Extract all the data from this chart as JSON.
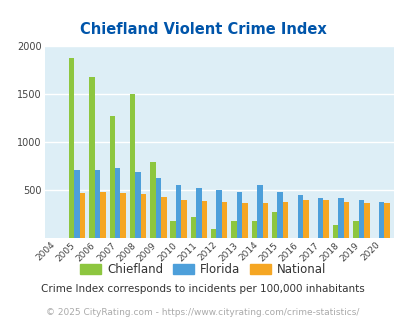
{
  "title": "Chiefland Violent Crime Index",
  "years": [
    2004,
    2005,
    2006,
    2007,
    2008,
    2009,
    2010,
    2011,
    2012,
    2013,
    2014,
    2015,
    2016,
    2017,
    2018,
    2019,
    2020
  ],
  "chiefland": [
    0,
    1880,
    1680,
    1270,
    1500,
    790,
    175,
    215,
    90,
    175,
    175,
    265,
    0,
    0,
    130,
    175,
    0
  ],
  "florida": [
    0,
    710,
    710,
    730,
    690,
    620,
    545,
    520,
    500,
    475,
    545,
    475,
    440,
    415,
    410,
    390,
    375
  ],
  "national": [
    0,
    470,
    480,
    470,
    460,
    420,
    390,
    380,
    370,
    365,
    365,
    375,
    395,
    390,
    375,
    365,
    365
  ],
  "chiefland_color": "#8dc63f",
  "florida_color": "#4d9fda",
  "national_color": "#f5a623",
  "bg_color": "#ddeef6",
  "title_color": "#0055aa",
  "grid_color": "#ffffff",
  "note_text": "Crime Index corresponds to incidents per 100,000 inhabitants",
  "footer_text": "© 2025 CityRating.com - https://www.cityrating.com/crime-statistics/",
  "ylim": [
    0,
    2000
  ],
  "yticks": [
    500,
    1000,
    1500,
    2000
  ],
  "bar_width": 0.27,
  "figsize": [
    4.06,
    3.3
  ],
  "dpi": 100
}
